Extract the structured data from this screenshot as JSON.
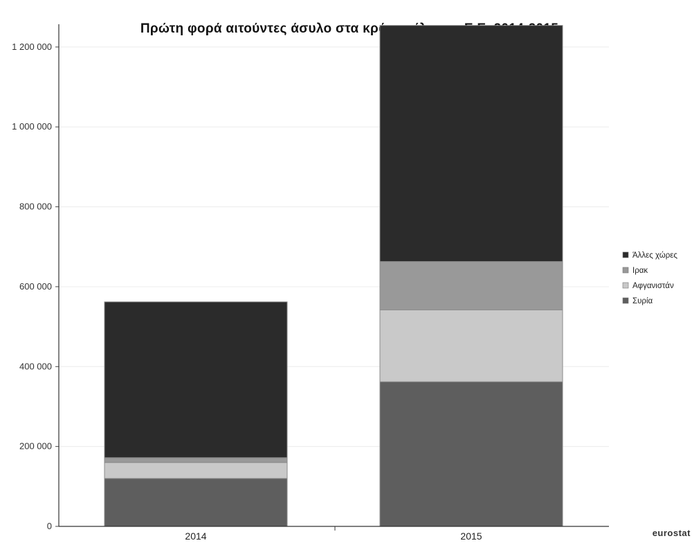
{
  "chart_data": {
    "type": "bar",
    "stacked": true,
    "title": "Πρώτη φορά αιτούντες άσυλο στα κράτη μέλη της Ε.Ε. 2014-2015",
    "categories": [
      "2014",
      "2015"
    ],
    "ylim": [
      0,
      1257000
    ],
    "yticks": [
      0,
      200000,
      400000,
      600000,
      800000,
      1000000,
      1200000
    ],
    "ytick_labels": [
      "0",
      "200 000",
      "400 000",
      "600 000",
      "800 000",
      "1 000 000",
      "1 200 000"
    ],
    "grid": true,
    "legend_position": "right",
    "series": [
      {
        "name": "Συρία",
        "values": [
          120000,
          362000
        ],
        "color": "#5e5e5e"
      },
      {
        "name": "Αφγανιστάν",
        "values": [
          40000,
          180000
        ],
        "color": "#c9c9c9"
      },
      {
        "name": "Ιρακ",
        "values": [
          12000,
          121000
        ],
        "color": "#999999"
      },
      {
        "name": "Άλλες χώρες",
        "values": [
          390000,
          591000
        ],
        "color": "#2b2b2b"
      }
    ],
    "legend_order": [
      "Άλλες χώρες",
      "Ιρακ",
      "Αφγανιστάν",
      "Συρία"
    ],
    "source": "eurostat"
  }
}
